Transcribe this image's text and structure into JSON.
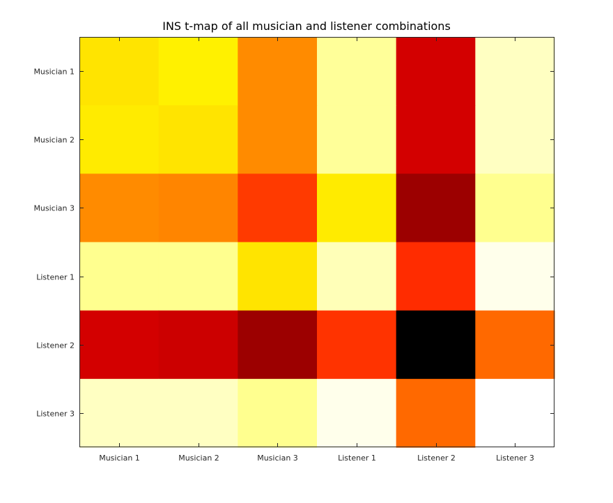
{
  "chart_data": {
    "type": "heatmap",
    "title": "INS t-map of all musician and listener combinations",
    "x_categories": [
      "Musician 1",
      "Musician 2",
      "Musician 3",
      "Listener 1",
      "Listener 2",
      "Listener 3"
    ],
    "y_categories": [
      "Musician 1",
      "Musician 2",
      "Musician 3",
      "Listener 1",
      "Listener 2",
      "Listener 3"
    ],
    "colormap": "hot",
    "clim": [
      0,
      1
    ],
    "values": [
      [
        0.71,
        0.73,
        0.58,
        0.9,
        0.31,
        0.94
      ],
      [
        0.72,
        0.71,
        0.58,
        0.9,
        0.31,
        0.94
      ],
      [
        0.58,
        0.57,
        0.46,
        0.72,
        0.23,
        0.89
      ],
      [
        0.89,
        0.89,
        0.71,
        0.93,
        0.44,
        0.98
      ],
      [
        0.31,
        0.3,
        0.23,
        0.45,
        0.0,
        0.53
      ],
      [
        0.94,
        0.94,
        0.89,
        0.98,
        0.53,
        1.0
      ]
    ],
    "colorbar": false,
    "grid": false
  }
}
